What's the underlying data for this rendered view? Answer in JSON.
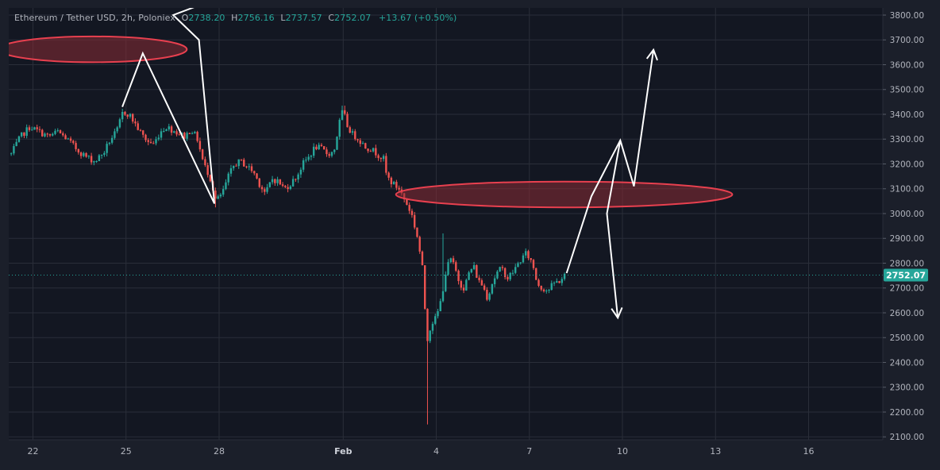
{
  "legend": {
    "symbol": "Ethereum / Tether USD, 2h, Poloniex",
    "o_label": "O",
    "o_value": "2738.20",
    "h_label": "H",
    "h_value": "2756.16",
    "l_label": "L",
    "l_value": "2737.57",
    "c_label": "C",
    "c_value": "2752.07",
    "change": "+13.67 (+0.50%)"
  },
  "colors": {
    "background": "#1b1f2a",
    "up": "#26a69a",
    "down": "#ef5350",
    "grid": "#2a2e39",
    "zone_fill": "#8b2b34",
    "zone_stroke": "#e8404f",
    "arrow": "#ffffff",
    "price_tag": "#26a69a"
  },
  "chart_data": {
    "type": "candlestick",
    "title": "Ethereum / Tether USD, 2h, Poloniex",
    "ylim": [
      2100,
      3850
    ],
    "y_ticks": [
      "3800.00",
      "3700.00",
      "3600.00",
      "3500.00",
      "3400.00",
      "3300.00",
      "3200.00",
      "3100.00",
      "3000.00",
      "2900.00",
      "2800.00",
      "2700.00",
      "2600.00",
      "2500.00",
      "2400.00",
      "2300.00",
      "2200.00",
      "2100.00"
    ],
    "x_ticks": [
      {
        "label": "22",
        "day": 22
      },
      {
        "label": "25",
        "day": 25
      },
      {
        "label": "28",
        "day": 28
      },
      {
        "label": "Feb",
        "day": 32
      },
      {
        "label": "4",
        "day": 35
      },
      {
        "label": "7",
        "day": 38
      },
      {
        "label": "10",
        "day": 41
      },
      {
        "label": "13",
        "day": 44
      },
      {
        "label": "16",
        "day": 47
      }
    ],
    "x_start_day": 21.3,
    "x_end_day": 49.4,
    "last_price": "2752.07",
    "last_price_value": 2752.07,
    "price_path": [
      [
        21.3,
        3240
      ],
      [
        21.6,
        3310
      ],
      [
        21.9,
        3350
      ],
      [
        22.2,
        3330
      ],
      [
        22.5,
        3310
      ],
      [
        22.8,
        3330
      ],
      [
        23.1,
        3300
      ],
      [
        23.4,
        3260
      ],
      [
        23.7,
        3230
      ],
      [
        24.0,
        3210
      ],
      [
        24.3,
        3250
      ],
      [
        24.5,
        3300
      ],
      [
        24.7,
        3330
      ],
      [
        24.9,
        3410
      ],
      [
        25.1,
        3400
      ],
      [
        25.3,
        3360
      ],
      [
        25.5,
        3320
      ],
      [
        25.7,
        3290
      ],
      [
        25.9,
        3280
      ],
      [
        26.1,
        3330
      ],
      [
        26.3,
        3350
      ],
      [
        26.6,
        3330
      ],
      [
        26.9,
        3310
      ],
      [
        27.1,
        3340
      ],
      [
        27.3,
        3300
      ],
      [
        27.5,
        3200
      ],
      [
        27.7,
        3150
      ],
      [
        27.9,
        3050
      ],
      [
        28.1,
        3080
      ],
      [
        28.3,
        3150
      ],
      [
        28.5,
        3200
      ],
      [
        28.7,
        3210
      ],
      [
        28.9,
        3190
      ],
      [
        29.1,
        3170
      ],
      [
        29.3,
        3120
      ],
      [
        29.5,
        3080
      ],
      [
        29.7,
        3140
      ],
      [
        29.9,
        3130
      ],
      [
        30.1,
        3100
      ],
      [
        30.3,
        3120
      ],
      [
        30.5,
        3150
      ],
      [
        30.7,
        3200
      ],
      [
        30.9,
        3230
      ],
      [
        31.1,
        3270
      ],
      [
        31.3,
        3260
      ],
      [
        31.5,
        3240
      ],
      [
        31.7,
        3250
      ],
      [
        31.9,
        3380
      ],
      [
        32.0,
        3420
      ],
      [
        32.1,
        3360
      ],
      [
        32.3,
        3320
      ],
      [
        32.5,
        3300
      ],
      [
        32.7,
        3270
      ],
      [
        32.9,
        3260
      ],
      [
        33.1,
        3240
      ],
      [
        33.3,
        3220
      ],
      [
        33.4,
        3150
      ],
      [
        33.6,
        3120
      ],
      [
        33.8,
        3100
      ],
      [
        34.0,
        3050
      ],
      [
        34.2,
        3000
      ],
      [
        34.4,
        2900
      ],
      [
        34.55,
        2780
      ],
      [
        34.7,
        2490
      ],
      [
        34.85,
        2560
      ],
      [
        35.0,
        2580
      ],
      [
        35.15,
        2650
      ],
      [
        35.3,
        2760
      ],
      [
        35.45,
        2820
      ],
      [
        35.6,
        2780
      ],
      [
        35.75,
        2720
      ],
      [
        35.9,
        2700
      ],
      [
        36.05,
        2760
      ],
      [
        36.2,
        2790
      ],
      [
        36.35,
        2730
      ],
      [
        36.5,
        2710
      ],
      [
        36.65,
        2660
      ],
      [
        36.8,
        2720
      ],
      [
        36.95,
        2760
      ],
      [
        37.1,
        2780
      ],
      [
        37.3,
        2740
      ],
      [
        37.5,
        2770
      ],
      [
        37.7,
        2810
      ],
      [
        37.9,
        2840
      ],
      [
        38.1,
        2800
      ],
      [
        38.25,
        2720
      ],
      [
        38.4,
        2700
      ],
      [
        38.6,
        2690
      ],
      [
        38.8,
        2720
      ],
      [
        39.0,
        2730
      ],
      [
        39.15,
        2752
      ]
    ]
  },
  "annotations": {
    "zones": [
      {
        "name": "upper-zone",
        "x0": 20.9,
        "x1": 26.96,
        "price": 3662,
        "half_height": 52
      },
      {
        "name": "middle-zone",
        "x0": 33.7,
        "x1": 44.54,
        "price": 3077,
        "half_height": 52
      }
    ],
    "arrow_paths": [
      {
        "name": "past-projection-path",
        "points": [
          [
            24.88,
            3430
          ],
          [
            25.54,
            3646
          ],
          [
            27.85,
            3040
          ],
          [
            27.35,
            3700
          ],
          [
            26.52,
            3800
          ],
          [
            27.58,
            3850
          ]
        ]
      },
      {
        "name": "bullish-projection-path",
        "points": [
          [
            39.2,
            2760
          ],
          [
            40.0,
            3070
          ],
          [
            40.93,
            3295
          ],
          [
            41.37,
            3110
          ],
          [
            42.0,
            3660
          ]
        ],
        "arrowhead_at_end": true
      },
      {
        "name": "bearish-projection-path",
        "points": [
          [
            40.93,
            3295
          ],
          [
            40.5,
            3000
          ],
          [
            40.85,
            2580
          ]
        ],
        "arrowhead_at_end": true
      }
    ]
  }
}
